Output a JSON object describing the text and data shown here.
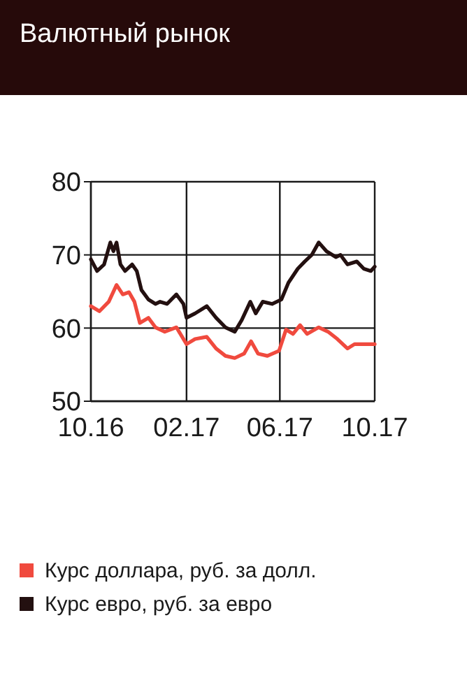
{
  "chart_data": {
    "type": "line",
    "title": "Валютный рынок",
    "xlim": [
      "2016-10-01",
      "2017-10-01"
    ],
    "xticks": [
      {
        "value": "2016-10-01",
        "label": "10.16"
      },
      {
        "value": "2017-02-01",
        "label": "02.17"
      },
      {
        "value": "2017-06-01",
        "label": "06.17"
      },
      {
        "value": "2017-10-01",
        "label": "10.17"
      }
    ],
    "ylim": [
      50,
      80
    ],
    "yticks": [
      50,
      60,
      70,
      80
    ],
    "grid": true,
    "legend": "bottom",
    "line_style": "solid",
    "marker": "none",
    "series": [
      {
        "name": "Курс доллара, руб. за долл.",
        "color": "#f04a3e",
        "x": [
          "2016-10-01",
          "2016-10-12",
          "2016-10-24",
          "2016-11-03",
          "2016-11-11",
          "2016-11-19",
          "2016-11-26",
          "2016-12-03",
          "2016-12-14",
          "2016-12-23",
          "2017-01-04",
          "2017-01-19",
          "2017-02-01",
          "2017-02-12",
          "2017-02-27",
          "2017-03-11",
          "2017-03-23",
          "2017-04-04",
          "2017-04-16",
          "2017-04-25",
          "2017-05-04",
          "2017-05-16",
          "2017-05-31",
          "2017-06-09",
          "2017-06-18",
          "2017-06-27",
          "2017-07-06",
          "2017-07-21",
          "2017-08-02",
          "2017-08-14",
          "2017-08-27",
          "2017-09-05",
          "2017-09-17",
          "2017-10-01"
        ],
        "values": [
          63.0,
          62.3,
          63.6,
          65.9,
          64.6,
          64.9,
          63.6,
          60.7,
          61.4,
          60.1,
          59.5,
          60.1,
          57.8,
          58.5,
          58.8,
          57.2,
          56.2,
          55.9,
          56.5,
          58.2,
          56.5,
          56.2,
          56.9,
          59.8,
          59.2,
          60.4,
          59.2,
          60.1,
          59.5,
          58.5,
          57.2,
          57.8,
          57.8,
          57.8
        ]
      },
      {
        "name": "Курс евро, руб. за евро",
        "color": "#231010",
        "x": [
          "2016-10-01",
          "2016-10-09",
          "2016-10-18",
          "2016-10-26",
          "2016-10-30",
          "2016-11-03",
          "2016-11-08",
          "2016-11-14",
          "2016-11-23",
          "2016-11-29",
          "2016-12-05",
          "2016-12-14",
          "2016-12-23",
          "2016-12-29",
          "2017-01-07",
          "2017-01-19",
          "2017-01-28",
          "2017-02-01",
          "2017-02-12",
          "2017-02-27",
          "2017-03-11",
          "2017-03-23",
          "2017-04-04",
          "2017-04-13",
          "2017-04-24",
          "2017-05-01",
          "2017-05-10",
          "2017-05-22",
          "2017-06-03",
          "2017-06-12",
          "2017-06-24",
          "2017-07-03",
          "2017-07-12",
          "2017-07-21",
          "2017-07-31",
          "2017-08-12",
          "2017-08-18",
          "2017-08-27",
          "2017-09-08",
          "2017-09-17",
          "2017-09-26",
          "2017-10-01"
        ],
        "values": [
          69.4,
          67.8,
          68.7,
          71.7,
          70.5,
          71.7,
          68.7,
          67.8,
          68.7,
          67.8,
          65.2,
          63.9,
          63.3,
          63.6,
          63.3,
          64.6,
          63.3,
          61.4,
          62.0,
          63.0,
          61.4,
          60.1,
          59.5,
          61.1,
          63.6,
          62.0,
          63.6,
          63.3,
          63.9,
          66.2,
          68.1,
          69.1,
          70.0,
          71.7,
          70.5,
          69.7,
          70.0,
          68.7,
          69.1,
          68.1,
          67.8,
          68.4
        ]
      }
    ]
  }
}
